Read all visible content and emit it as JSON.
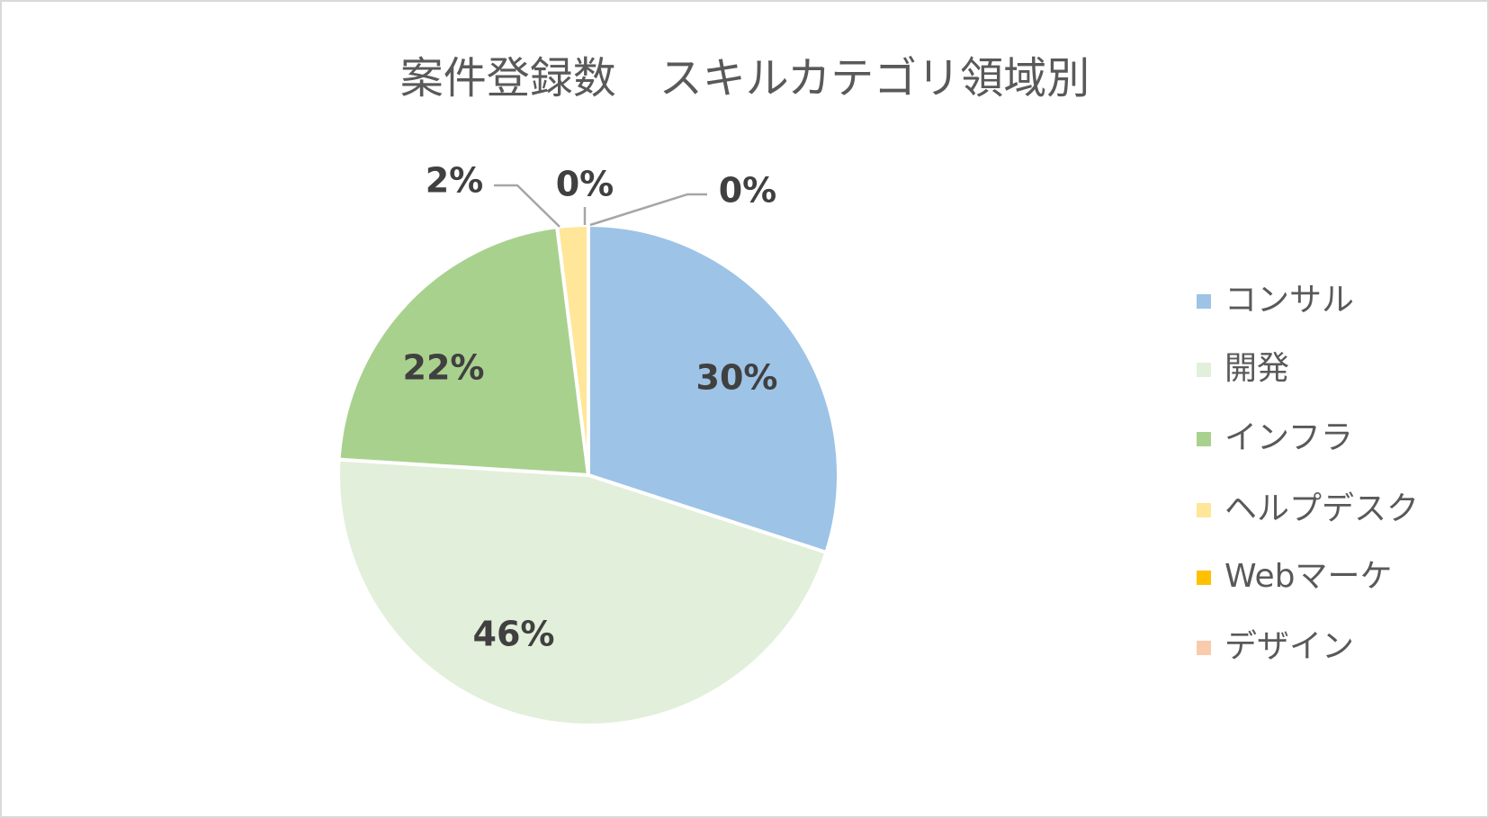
{
  "chart_data": {
    "type": "pie",
    "title": "案件登録数　スキルカテゴリ領域別",
    "categories": [
      "コンサル",
      "開発",
      "インフラ",
      "ヘルプデスク",
      "Webマーケ",
      "デザイン"
    ],
    "values": [
      30,
      46,
      22,
      2,
      0,
      0
    ],
    "value_labels": [
      "30%",
      "46%",
      "22%",
      "2%",
      "0%",
      "0%"
    ],
    "colors": [
      "#9dc3e6",
      "#e2efda",
      "#a9d18e",
      "#ffe699",
      "#ffc000",
      "#f8cbad"
    ],
    "legend": "right"
  }
}
